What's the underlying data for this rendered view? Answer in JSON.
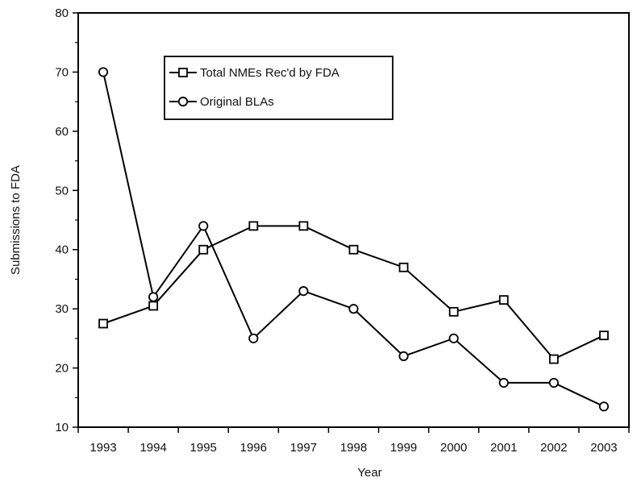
{
  "chart_data": {
    "type": "line",
    "title": "",
    "xlabel": "Year",
    "ylabel": "Submissions to FDA",
    "ylim": [
      10,
      80
    ],
    "yticks": [
      "10",
      "20",
      "30",
      "40",
      "50",
      "60",
      "70",
      "80"
    ],
    "categories": [
      "1993",
      "1994",
      "1995",
      "1996",
      "1997",
      "1998",
      "1999",
      "2000",
      "2001",
      "2002",
      "2003"
    ],
    "grid": false,
    "legend_position": "top-left",
    "series": [
      {
        "name": "Total NMEs Rec'd by FDA",
        "marker": "square",
        "values": [
          27.5,
          30.5,
          40,
          44,
          44,
          40,
          37,
          29.5,
          31.5,
          21.5,
          25.5
        ]
      },
      {
        "name": "Original BLAs",
        "marker": "circle",
        "values": [
          70,
          32,
          44,
          25,
          33,
          30,
          22,
          25,
          17.5,
          17.5,
          13.5
        ]
      }
    ],
    "colors": {
      "line": "#000000",
      "marker_fill": "#ffffff",
      "axis": "#000000",
      "background": "#ffffff"
    }
  }
}
